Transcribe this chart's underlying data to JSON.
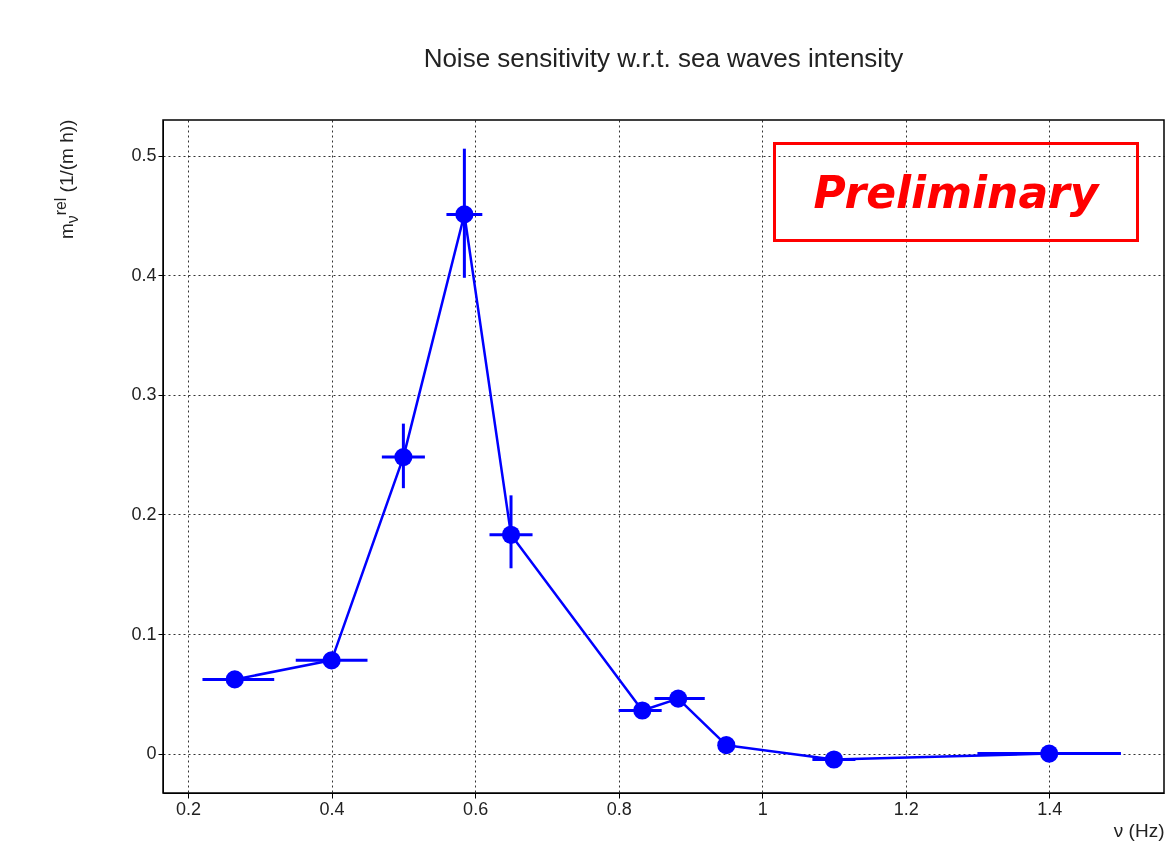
{
  "chart_data": {
    "type": "line",
    "title": "Noise sensitivity w.r.t. sea waves intensity",
    "xlabel": "ν (Hz)",
    "ylabel": "m$_{ν}$$^{rel}$ (1/(m h))",
    "x": [
      0.265,
      0.4,
      0.5,
      0.585,
      0.65,
      0.833,
      0.883,
      0.95,
      1.1,
      1.4
    ],
    "series": [
      {
        "color": "#0000ff",
        "values": [
          0.062,
          0.078,
          0.248,
          0.451,
          0.183,
          0.036,
          0.046,
          0.007,
          -0.005,
          0.0
        ],
        "errors": [
          null,
          null,
          [
            0.222,
            0.276
          ],
          [
            0.398,
            0.506
          ],
          [
            0.155,
            0.216
          ],
          null,
          null,
          null,
          null,
          null
        ],
        "xerrors": [
          [
            0.22,
            0.32
          ],
          [
            0.35,
            0.45
          ],
          [
            0.47,
            0.53
          ],
          [
            0.56,
            0.61
          ],
          [
            0.62,
            0.68
          ],
          [
            0.8,
            0.86
          ],
          [
            0.85,
            0.92
          ],
          null,
          [
            1.07,
            1.13
          ],
          [
            1.3,
            1.5
          ]
        ]
      }
    ],
    "xlim": [
      0.165,
      1.56
    ],
    "ylim": [
      -0.033,
      0.53
    ],
    "xticks": [
      0.2,
      0.4,
      0.6,
      0.8,
      1,
      1.2,
      1.4
    ],
    "yticks": [
      0,
      0.1,
      0.2,
      0.3,
      0.4,
      0.5
    ],
    "grid": true,
    "marker": "circle",
    "line_style": "solid",
    "annotations": [
      "Preliminary"
    ]
  }
}
